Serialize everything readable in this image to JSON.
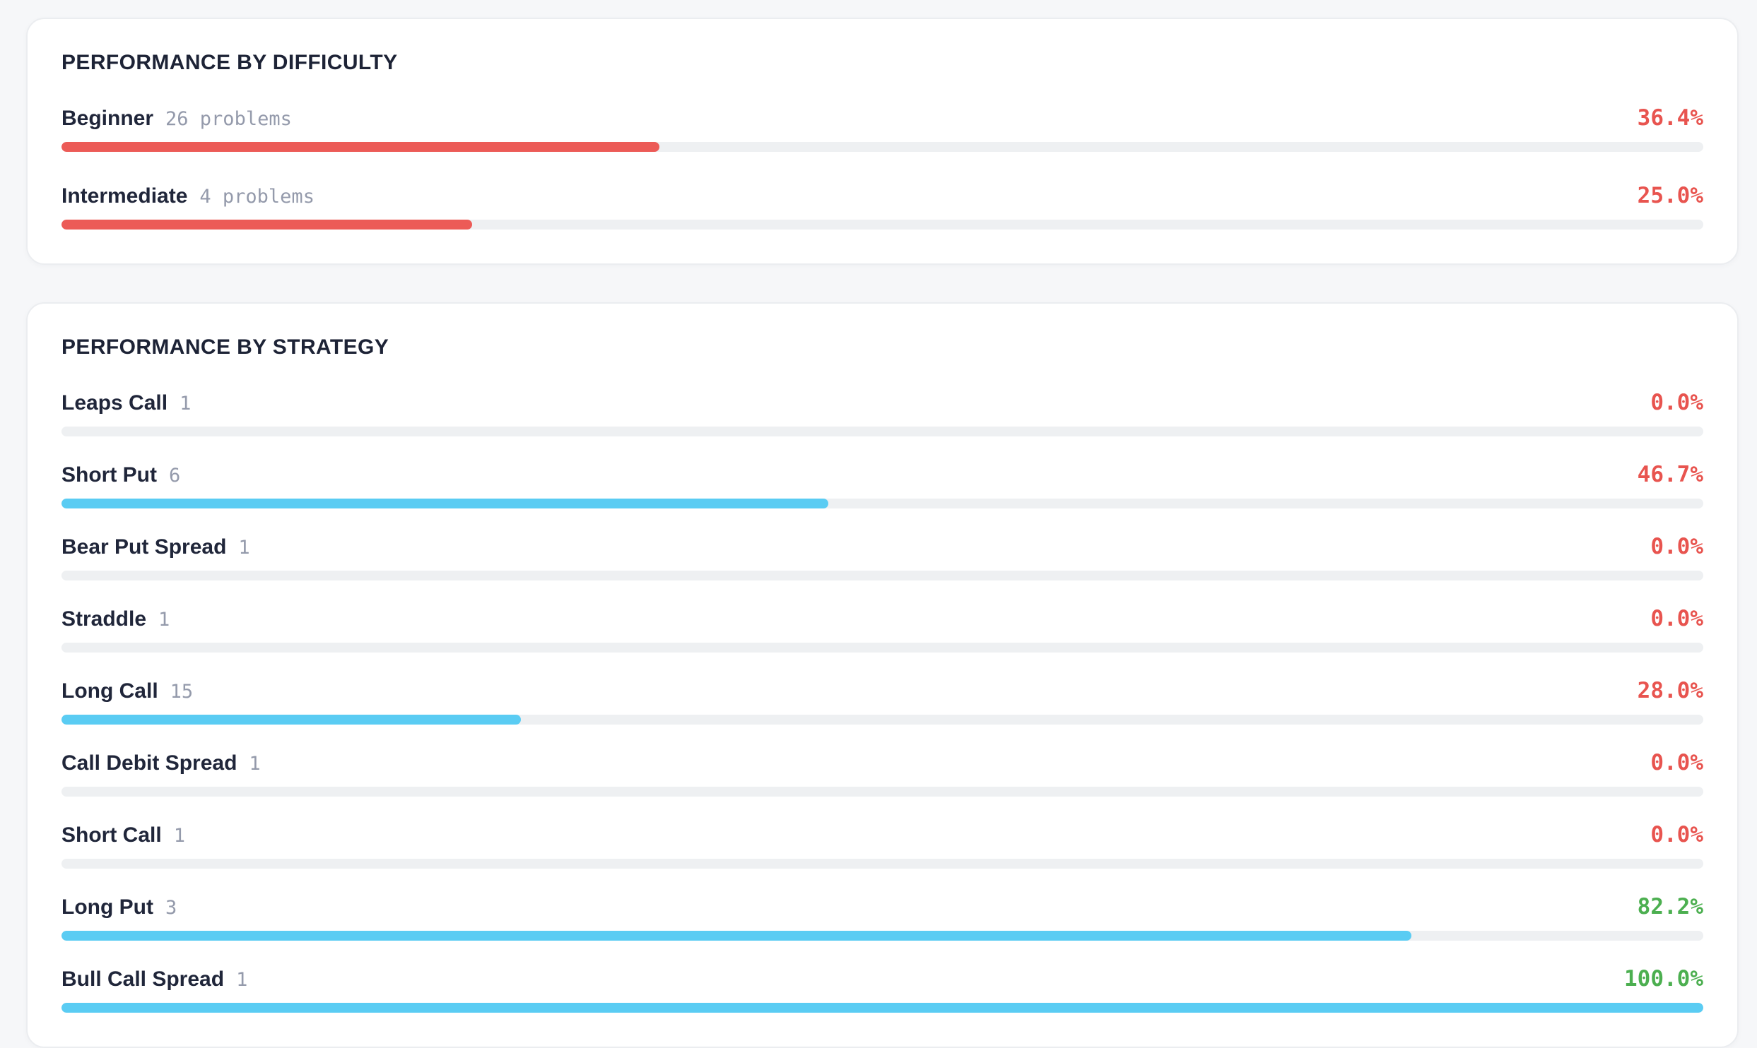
{
  "page": {
    "background": "#f6f7f9"
  },
  "colors": {
    "red_bar": "#ec5b57",
    "blue_bar": "#5accf3",
    "red_text": "#e8544f",
    "green_text": "#4caf50",
    "track": "#eef0f2",
    "label": "#20263a",
    "count": "#949aab",
    "title": "#1d2336"
  },
  "cards": [
    {
      "title": "PERFORMANCE BY DIFFICULTY",
      "bar_color": "#ec5b57",
      "rows": [
        {
          "label": "Beginner",
          "count": "26 problems",
          "percent": "36.4%",
          "value": 36.4,
          "percent_color": "#e8544f"
        },
        {
          "label": "Intermediate",
          "count": "4 problems",
          "percent": "25.0%",
          "value": 25.0,
          "percent_color": "#e8544f"
        }
      ]
    },
    {
      "title": "PERFORMANCE BY STRATEGY",
      "bar_color": "#5accf3",
      "rows": [
        {
          "label": "Leaps Call",
          "count": "1",
          "percent": "0.0%",
          "value": 0,
          "percent_color": "#e8544f"
        },
        {
          "label": "Short Put",
          "count": "6",
          "percent": "46.7%",
          "value": 46.7,
          "percent_color": "#e8544f"
        },
        {
          "label": "Bear Put Spread",
          "count": "1",
          "percent": "0.0%",
          "value": 0,
          "percent_color": "#e8544f"
        },
        {
          "label": "Straddle",
          "count": "1",
          "percent": "0.0%",
          "value": 0,
          "percent_color": "#e8544f"
        },
        {
          "label": "Long Call",
          "count": "15",
          "percent": "28.0%",
          "value": 28.0,
          "percent_color": "#e8544f"
        },
        {
          "label": "Call Debit Spread",
          "count": "1",
          "percent": "0.0%",
          "value": 0,
          "percent_color": "#e8544f"
        },
        {
          "label": "Short Call",
          "count": "1",
          "percent": "0.0%",
          "value": 0,
          "percent_color": "#e8544f"
        },
        {
          "label": "Long Put",
          "count": "3",
          "percent": "82.2%",
          "value": 82.2,
          "percent_color": "#4caf50"
        },
        {
          "label": "Bull Call Spread",
          "count": "1",
          "percent": "100.0%",
          "value": 100,
          "percent_color": "#4caf50"
        }
      ]
    }
  ],
  "chart_data": [
    {
      "type": "bar",
      "orientation": "horizontal",
      "title": "PERFORMANCE BY DIFFICULTY",
      "categories": [
        "Beginner",
        "Intermediate"
      ],
      "counts": [
        26,
        4
      ],
      "count_unit": "problems",
      "values": [
        36.4,
        25.0
      ],
      "value_unit": "%",
      "xlim": [
        0,
        100
      ],
      "grid": false,
      "legend": false
    },
    {
      "type": "bar",
      "orientation": "horizontal",
      "title": "PERFORMANCE BY STRATEGY",
      "categories": [
        "Leaps Call",
        "Short Put",
        "Bear Put Spread",
        "Straddle",
        "Long Call",
        "Call Debit Spread",
        "Short Call",
        "Long Put",
        "Bull Call Spread"
      ],
      "counts": [
        1,
        6,
        1,
        1,
        15,
        1,
        1,
        3,
        1
      ],
      "values": [
        0.0,
        46.7,
        0.0,
        0.0,
        28.0,
        0.0,
        0.0,
        82.2,
        100.0
      ],
      "value_unit": "%",
      "xlim": [
        0,
        100
      ],
      "grid": false,
      "legend": false
    }
  ]
}
